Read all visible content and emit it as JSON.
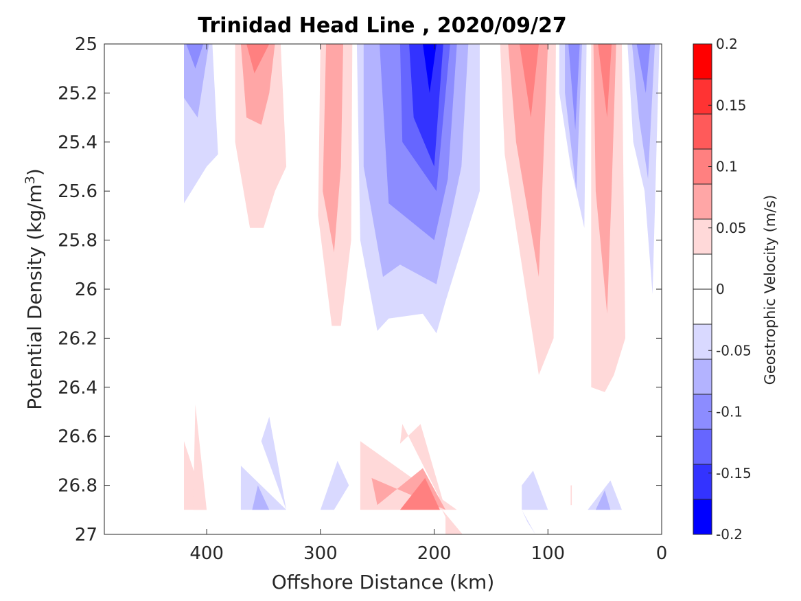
{
  "chart_data": {
    "type": "contourf",
    "title": "Trinidad Head Line , 2020/09/27",
    "xlabel": "Offshore Distance (km)",
    "ylabel": "Potential Density (kg/m",
    "ylabel_superscript": "3",
    "ylabel_suffix": ")",
    "xlim": [
      490,
      0
    ],
    "ylim": [
      25,
      27
    ],
    "x_ticks": [
      "400",
      "300",
      "200",
      "100",
      "0"
    ],
    "y_ticks": [
      "25",
      "25.2",
      "25.4",
      "25.6",
      "25.8",
      "26",
      "26.2",
      "26.4",
      "26.6",
      "26.8",
      "27"
    ],
    "colorbar": {
      "label": "Geostrophic Velocity (m/s)",
      "ticks": [
        "0.2",
        "0.15",
        "0.1",
        "0.05",
        "0",
        "-0.05",
        "-0.1",
        "-0.15",
        "-0.2"
      ],
      "levels": [
        -0.2,
        0.2
      ],
      "colors_top_to_bottom": [
        "#ff0000",
        "#ff3333",
        "#ff5a5a",
        "#ff8080",
        "#ffa6a6",
        "#ffd9d9",
        "#ffffff",
        "#ffffff",
        "#d9d9ff",
        "#b3b3ff",
        "#8c8cff",
        "#6666ff",
        "#3333ff",
        "#0000ff"
      ]
    },
    "regions": [
      {
        "level": -0.05,
        "color": "#d9d9ff",
        "points": [
          [
            420,
            25
          ],
          [
            395,
            25
          ],
          [
            390,
            25.45
          ],
          [
            400,
            25.5
          ],
          [
            420,
            25.65
          ]
        ]
      },
      {
        "level": -0.1,
        "color": "#b3b3ff",
        "points": [
          [
            420,
            25
          ],
          [
            398,
            25
          ],
          [
            408,
            25.3
          ],
          [
            420,
            25.22
          ]
        ]
      },
      {
        "level": -0.15,
        "color": "#8c8cff",
        "points": [
          [
            418,
            25
          ],
          [
            403,
            25
          ],
          [
            410,
            25.1
          ]
        ]
      },
      {
        "level": 0.05,
        "color": "#ffd9d9",
        "points": [
          [
            375,
            25
          ],
          [
            335,
            25
          ],
          [
            330,
            25.5
          ],
          [
            340,
            25.6
          ],
          [
            350,
            25.75
          ],
          [
            362,
            25.75
          ],
          [
            375,
            25.4
          ]
        ]
      },
      {
        "level": 0.1,
        "color": "#ffa6a6",
        "points": [
          [
            370,
            25
          ],
          [
            340,
            25
          ],
          [
            345,
            25.2
          ],
          [
            352,
            25.33
          ],
          [
            365,
            25.3
          ]
        ]
      },
      {
        "level": 0.15,
        "color": "#ff8080",
        "points": [
          [
            365,
            25
          ],
          [
            345,
            25
          ],
          [
            358,
            25.12
          ]
        ]
      },
      {
        "level": 0.05,
        "color": "#ffd9d9",
        "points": [
          [
            300,
            25
          ],
          [
            272,
            25
          ],
          [
            273,
            25.8
          ],
          [
            282,
            26.15
          ],
          [
            290,
            26.15
          ],
          [
            302,
            25.7
          ]
        ]
      },
      {
        "level": 0.1,
        "color": "#ffa6a6",
        "points": [
          [
            295,
            25
          ],
          [
            280,
            25
          ],
          [
            282,
            25.5
          ],
          [
            288,
            25.85
          ],
          [
            298,
            25.6
          ]
        ]
      },
      {
        "level": -0.05,
        "color": "#d9d9ff",
        "points": [
          [
            268,
            25
          ],
          [
            160,
            25
          ],
          [
            160,
            25.6
          ],
          [
            190,
            26.05
          ],
          [
            198,
            26.18
          ],
          [
            210,
            26.1
          ],
          [
            240,
            26.12
          ],
          [
            250,
            26.17
          ],
          [
            265,
            25.8
          ]
        ]
      },
      {
        "level": -0.1,
        "color": "#b3b3ff",
        "points": [
          [
            262,
            25
          ],
          [
            170,
            25
          ],
          [
            176,
            25.5
          ],
          [
            198,
            25.98
          ],
          [
            230,
            25.9
          ],
          [
            245,
            25.95
          ],
          [
            262,
            25.5
          ]
        ]
      },
      {
        "level": -0.15,
        "color": "#8c8cff",
        "points": [
          [
            248,
            25
          ],
          [
            180,
            25
          ],
          [
            188,
            25.55
          ],
          [
            200,
            25.8
          ],
          [
            240,
            25.65
          ]
        ]
      },
      {
        "level": -0.2,
        "color": "#6666ff",
        "points": [
          [
            230,
            25
          ],
          [
            186,
            25
          ],
          [
            198,
            25.6
          ],
          [
            228,
            25.4
          ]
        ]
      },
      {
        "level": -0.25,
        "color": "#3333ff",
        "points": [
          [
            222,
            25
          ],
          [
            192,
            25
          ],
          [
            200,
            25.5
          ],
          [
            218,
            25.3
          ]
        ]
      },
      {
        "level": -0.3,
        "color": "#0000ff",
        "points": [
          [
            210,
            25
          ],
          [
            198,
            25
          ],
          [
            204,
            25.2
          ]
        ]
      },
      {
        "level": 0.05,
        "color": "#ffd9d9",
        "points": [
          [
            142,
            25
          ],
          [
            93,
            25
          ],
          [
            95,
            26.2
          ],
          [
            108,
            26.35
          ],
          [
            138,
            25.45
          ]
        ]
      },
      {
        "level": 0.1,
        "color": "#ffa6a6",
        "points": [
          [
            135,
            25
          ],
          [
            100,
            25
          ],
          [
            108,
            25.95
          ],
          [
            128,
            25.4
          ]
        ]
      },
      {
        "level": 0.15,
        "color": "#ff8080",
        "points": [
          [
            125,
            25
          ],
          [
            108,
            25
          ],
          [
            115,
            25.3
          ]
        ]
      },
      {
        "level": -0.05,
        "color": "#d9d9ff",
        "points": [
          [
            90,
            25
          ],
          [
            66,
            25
          ],
          [
            68,
            25.75
          ],
          [
            80,
            25.5
          ],
          [
            90,
            25.2
          ]
        ]
      },
      {
        "level": -0.1,
        "color": "#b3b3ff",
        "points": [
          [
            85,
            25
          ],
          [
            70,
            25
          ],
          [
            75,
            25.6
          ],
          [
            85,
            25.2
          ]
        ]
      },
      {
        "level": -0.15,
        "color": "#8c8cff",
        "points": [
          [
            82,
            25
          ],
          [
            72,
            25
          ],
          [
            76,
            25.35
          ]
        ]
      },
      {
        "level": 0.05,
        "color": "#ffd9d9",
        "points": [
          [
            62,
            25
          ],
          [
            35,
            25
          ],
          [
            32,
            26.2
          ],
          [
            42,
            26.35
          ],
          [
            50,
            26.42
          ],
          [
            62,
            26.4
          ]
        ]
      },
      {
        "level": 0.1,
        "color": "#ffa6a6",
        "points": [
          [
            60,
            25
          ],
          [
            40,
            25
          ],
          [
            44,
            25.6
          ],
          [
            48,
            26.1
          ],
          [
            58,
            25.6
          ]
        ]
      },
      {
        "level": 0.15,
        "color": "#ff8080",
        "points": [
          [
            56,
            25
          ],
          [
            44,
            25
          ],
          [
            48,
            25.3
          ]
        ]
      },
      {
        "level": -0.05,
        "color": "#d9d9ff",
        "points": [
          [
            30,
            25
          ],
          [
            2,
            25
          ],
          [
            8,
            26.02
          ],
          [
            15,
            25.6
          ],
          [
            25,
            25.4
          ]
        ]
      },
      {
        "level": -0.1,
        "color": "#b3b3ff",
        "points": [
          [
            26,
            25
          ],
          [
            6,
            25
          ],
          [
            12,
            25.55
          ],
          [
            20,
            25.3
          ]
        ]
      },
      {
        "level": -0.15,
        "color": "#8c8cff",
        "points": [
          [
            22,
            25
          ],
          [
            10,
            25
          ],
          [
            14,
            25.2
          ]
        ]
      },
      {
        "level": 0.05,
        "color": "#ffd9d9",
        "points": [
          [
            420,
            26.62
          ],
          [
            400,
            26.9
          ],
          [
            420,
            26.9
          ]
        ]
      },
      {
        "level": 0.05,
        "color": "#ffd9d9",
        "points": [
          [
            410,
            26.47
          ],
          [
            400,
            26.9
          ],
          [
            412,
            26.9
          ]
        ]
      },
      {
        "level": -0.05,
        "color": "#d9d9ff",
        "points": [
          [
            370,
            26.72
          ],
          [
            330,
            26.9
          ],
          [
            370,
            26.9
          ]
        ]
      },
      {
        "level": -0.05,
        "color": "#d9d9ff",
        "points": [
          [
            345,
            26.52
          ],
          [
            330,
            26.9
          ],
          [
            352,
            26.62
          ]
        ]
      },
      {
        "level": -0.1,
        "color": "#b3b3ff",
        "points": [
          [
            355,
            26.8
          ],
          [
            345,
            26.9
          ],
          [
            360,
            26.9
          ]
        ]
      },
      {
        "level": -0.05,
        "color": "#d9d9ff",
        "points": [
          [
            300,
            26.9
          ],
          [
            285,
            26.7
          ],
          [
            275,
            26.8
          ],
          [
            288,
            26.9
          ]
        ]
      },
      {
        "level": 0.05,
        "color": "#ffd9d9",
        "points": [
          [
            265,
            26.62
          ],
          [
            180,
            26.9
          ],
          [
            240,
            26.9
          ],
          [
            265,
            26.9
          ]
        ]
      },
      {
        "level": 0.05,
        "color": "#ffd9d9",
        "points": [
          [
            228,
            26.55
          ],
          [
            190,
            26.9
          ],
          [
            212,
            26.55
          ],
          [
            230,
            26.63
          ]
        ]
      },
      {
        "level": 0.1,
        "color": "#ffa6a6",
        "points": [
          [
            255,
            26.77
          ],
          [
            190,
            26.9
          ],
          [
            210,
            26.73
          ],
          [
            250,
            26.88
          ]
        ]
      },
      {
        "level": 0.15,
        "color": "#ff8080",
        "points": [
          [
            230,
            26.9
          ],
          [
            208,
            26.77
          ],
          [
            195,
            26.9
          ]
        ]
      },
      {
        "level": 0.05,
        "color": "#ffd9d9",
        "points": [
          [
            193,
            26.9
          ],
          [
            175,
            27
          ],
          [
            190,
            27
          ],
          [
            190,
            26.93
          ]
        ]
      },
      {
        "level": -0.05,
        "color": "#d9d9ff",
        "points": [
          [
            123,
            26.9
          ],
          [
            100,
            26.9
          ],
          [
            113,
            26.74
          ],
          [
            123,
            26.8
          ]
        ]
      },
      {
        "level": -0.05,
        "color": "#d9d9ff",
        "points": [
          [
            123,
            26.9
          ],
          [
            111,
            27
          ],
          [
            118,
            26.95
          ]
        ]
      },
      {
        "level": -0.05,
        "color": "#d9d9ff",
        "points": [
          [
            65,
            26.9
          ],
          [
            45,
            26.78
          ],
          [
            35,
            26.9
          ]
        ]
      },
      {
        "level": -0.1,
        "color": "#b3b3ff",
        "points": [
          [
            58,
            26.9
          ],
          [
            50,
            26.82
          ],
          [
            45,
            26.9
          ]
        ]
      },
      {
        "level": 0.05,
        "color": "#ffd9d9",
        "points": [
          [
            80,
            26.8
          ],
          [
            79,
            26.8
          ],
          [
            79,
            26.88
          ],
          [
            80,
            26.88
          ]
        ]
      }
    ]
  }
}
